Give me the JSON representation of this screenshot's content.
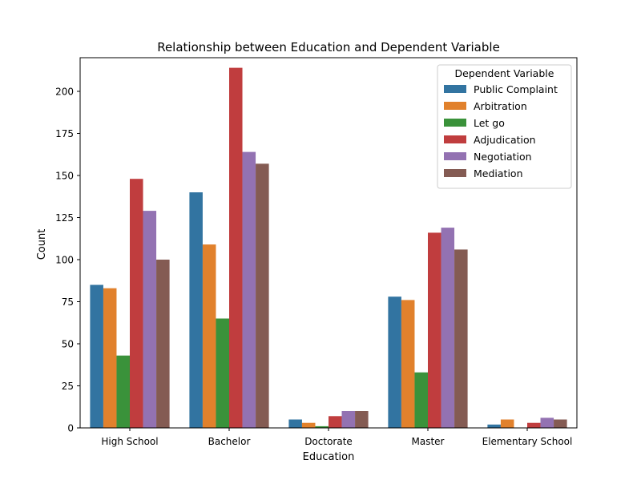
{
  "chart_data": {
    "type": "bar",
    "title": "Relationship between Education and Dependent Variable",
    "xlabel": "Education",
    "ylabel": "Count",
    "ylim": [
      0,
      220
    ],
    "yticks": [
      0,
      25,
      50,
      75,
      100,
      125,
      150,
      175,
      200
    ],
    "categories": [
      "High School",
      "Bachelor",
      "Doctorate",
      "Master",
      "Elementary School"
    ],
    "legend": {
      "title": "Dependent Variable",
      "position": "top-right"
    },
    "grid": false,
    "series": [
      {
        "name": "Public Complaint",
        "color": "#3274a1",
        "values": [
          85,
          140,
          5,
          78,
          2
        ]
      },
      {
        "name": "Arbitration",
        "color": "#e1812c",
        "values": [
          83,
          109,
          3,
          76,
          5
        ]
      },
      {
        "name": "Let go",
        "color": "#3a923a",
        "values": [
          43,
          65,
          1,
          33,
          0
        ]
      },
      {
        "name": "Adjudication",
        "color": "#c03d3e",
        "values": [
          148,
          214,
          7,
          116,
          3
        ]
      },
      {
        "name": "Negotiation",
        "color": "#9372b2",
        "values": [
          129,
          164,
          10,
          119,
          6
        ]
      },
      {
        "name": "Mediation",
        "color": "#845b53",
        "values": [
          100,
          157,
          10,
          106,
          5
        ]
      }
    ]
  }
}
